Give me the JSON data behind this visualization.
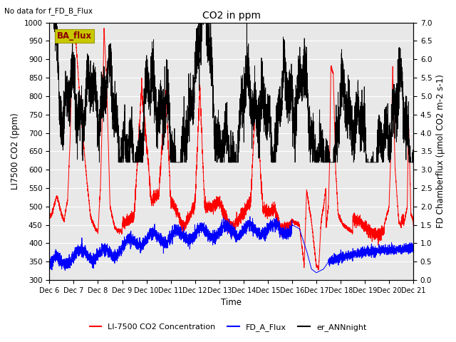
{
  "title": "CO2 in ppm",
  "top_left_text": "No data for f_FD_B_Flux",
  "box_label": "BA_flux",
  "ylabel_left": "LI7500 CO2 (ppm)",
  "ylabel_right": "FD Chamberflux (μmol CO2 m-2 s-1)",
  "xlabel": "Time",
  "ylim_left": [
    300,
    1000
  ],
  "ylim_right": [
    0.0,
    7.0
  ],
  "yticks_left": [
    300,
    350,
    400,
    450,
    500,
    550,
    600,
    650,
    700,
    750,
    800,
    850,
    900,
    950,
    1000
  ],
  "yticks_right": [
    0.0,
    0.5,
    1.0,
    1.5,
    2.0,
    2.5,
    3.0,
    3.5,
    4.0,
    4.5,
    5.0,
    5.5,
    6.0,
    6.5,
    7.0
  ],
  "xtick_labels": [
    "Dec 6",
    "Dec 7",
    "Dec 8",
    "Dec 9",
    "Dec 10",
    "Dec 11",
    "Dec 12",
    "Dec 13",
    "Dec 14",
    "Dec 15",
    "Dec 16",
    "Dec 17",
    "Dec 18",
    "Dec 19",
    "Dec 20",
    "Dec 21"
  ],
  "colors": {
    "red": "#FF0000",
    "blue": "#0000FF",
    "black": "#000000",
    "background": "#E8E8E8",
    "box_bg": "#C8C800",
    "box_text": "#8B0000"
  },
  "legend_labels": [
    "LI-7500 CO2 Concentration",
    "FD_A_Flux",
    "er_ANNnight"
  ],
  "n_points": 5000,
  "seed": 7
}
